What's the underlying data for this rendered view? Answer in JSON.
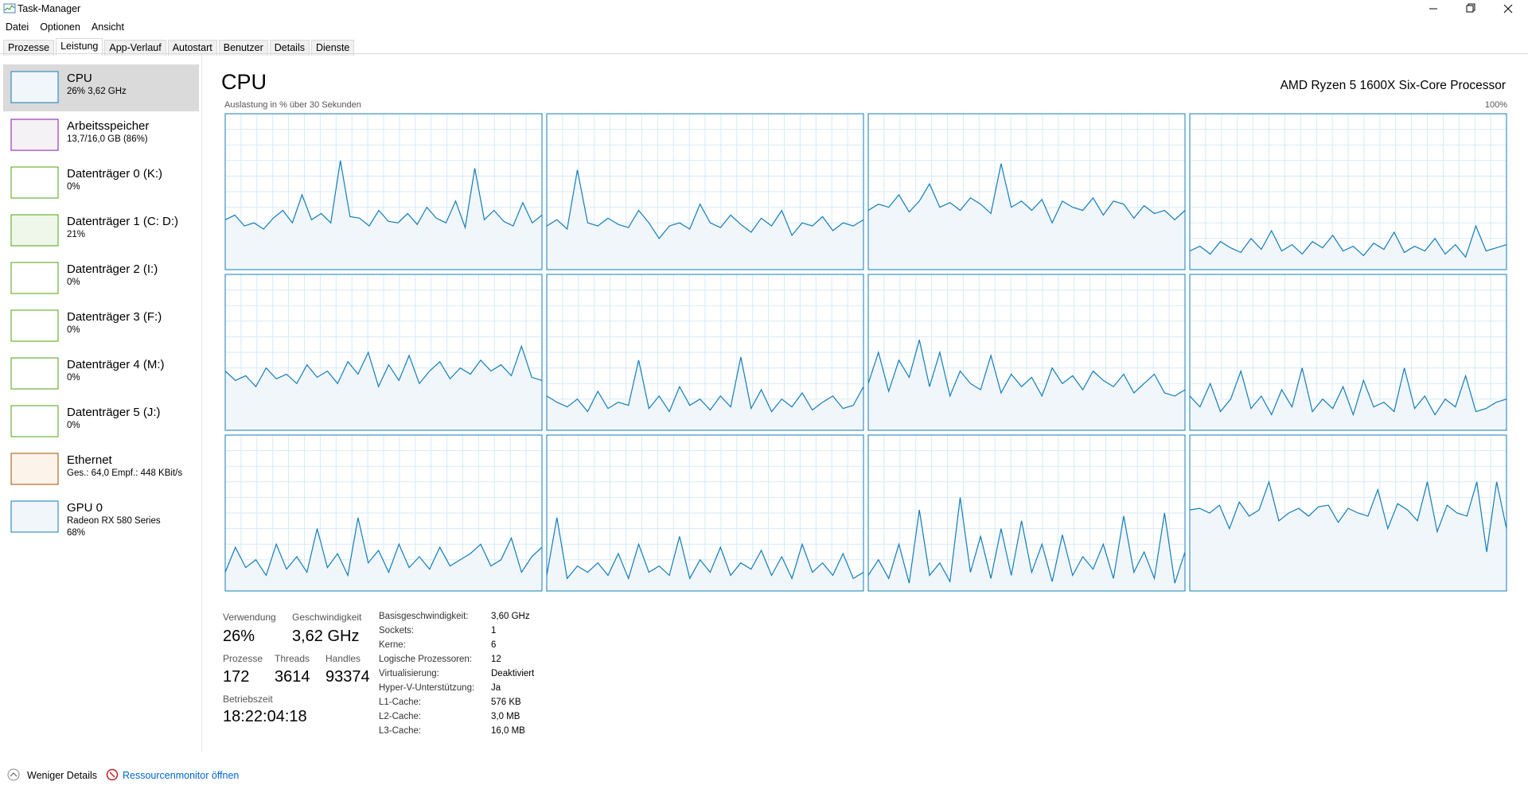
{
  "window": {
    "title": "Task-Manager"
  },
  "menu": [
    "Datei",
    "Optionen",
    "Ansicht"
  ],
  "tabs": [
    "Prozesse",
    "Leistung",
    "App-Verlauf",
    "Autostart",
    "Benutzer",
    "Details",
    "Dienste"
  ],
  "selected_tab": 1,
  "sidebar": [
    {
      "name": "CPU",
      "details": [
        "26% 3,62 GHz"
      ],
      "color": "#117dbb",
      "fill": "#f1f6fa"
    },
    {
      "name": "Arbeitsspeicher",
      "details": [
        "13,7/16,0 GB (86%)"
      ],
      "color": "#8b12ae",
      "fill": "#f4f2f4"
    },
    {
      "name": "Datenträger 0 (K:)",
      "details": [
        "0%"
      ],
      "color": "#4da60c",
      "fill": "#ffffff"
    },
    {
      "name": "Datenträger 1 (C: D:)",
      "details": [
        "21%"
      ],
      "color": "#4da60c",
      "fill": "#eff7ea"
    },
    {
      "name": "Datenträger 2 (I:)",
      "details": [
        "0%"
      ],
      "color": "#4da60c",
      "fill": "#ffffff"
    },
    {
      "name": "Datenträger 3 (F:)",
      "details": [
        "0%"
      ],
      "color": "#4da60c",
      "fill": "#ffffff"
    },
    {
      "name": "Datenträger 4 (M:)",
      "details": [
        "0%"
      ],
      "color": "#4da60c",
      "fill": "#ffffff"
    },
    {
      "name": "Datenträger 5 (J:)",
      "details": [
        "0%"
      ],
      "color": "#4da60c",
      "fill": "#ffffff"
    },
    {
      "name": "Ethernet",
      "details": [
        "Ges.: 64,0 Empf.: 448 KBit/s"
      ],
      "color": "#a74f01",
      "fill": "#fcf3eb"
    },
    {
      "name": "GPU 0",
      "details": [
        "Radeon RX 580 Series",
        "68%"
      ],
      "color": "#117dbb",
      "fill": "#f1f6fa"
    }
  ],
  "selected_item": 0,
  "performance": {
    "title": "CPU",
    "processor": "AMD Ryzen 5 1600X Six-Core Processor",
    "graph_caption": "Auslastung in % über 30 Sekunden",
    "scale_max_label": "100%",
    "ylim": [
      0,
      100
    ],
    "line_color": "#117dbb",
    "area_color": "#f1f6fa",
    "cores": [
      {
        "values": [
          32,
          35,
          28,
          30,
          26,
          33,
          38,
          30,
          48,
          32,
          36,
          30,
          70,
          34,
          33,
          28,
          38,
          31,
          30,
          36,
          29,
          40,
          33,
          30,
          44,
          27,
          65,
          32,
          38,
          31,
          28,
          43,
          30,
          35
        ]
      },
      {
        "values": [
          28,
          32,
          26,
          64,
          30,
          28,
          33,
          29,
          27,
          38,
          30,
          20,
          28,
          30,
          26,
          42,
          30,
          27,
          35,
          29,
          24,
          33,
          28,
          38,
          22,
          30,
          28,
          34,
          25,
          30,
          28,
          32
        ]
      },
      {
        "values": [
          38,
          42,
          40,
          48,
          37,
          44,
          55,
          40,
          43,
          38,
          46,
          42,
          36,
          68,
          40,
          44,
          38,
          45,
          30,
          44,
          40,
          38,
          46,
          35,
          44,
          42,
          33,
          41,
          36,
          38,
          32,
          38
        ]
      },
      {
        "values": [
          12,
          15,
          10,
          18,
          14,
          11,
          20,
          13,
          25,
          12,
          16,
          10,
          18,
          14,
          22,
          12,
          15,
          9,
          17,
          13,
          24,
          11,
          15,
          12,
          20,
          10,
          16,
          8,
          28,
          12,
          14,
          16
        ]
      },
      {
        "values": [
          38,
          32,
          35,
          28,
          40,
          33,
          36,
          30,
          42,
          34,
          38,
          30,
          44,
          36,
          50,
          28,
          42,
          32,
          48,
          30,
          38,
          44,
          33,
          40,
          36,
          45,
          38,
          42,
          35,
          54,
          34,
          32
        ]
      },
      {
        "values": [
          22,
          18,
          15,
          20,
          12,
          25,
          14,
          18,
          16,
          45,
          14,
          22,
          12,
          28,
          16,
          20,
          13,
          22,
          15,
          47,
          14,
          26,
          12,
          20,
          15,
          24,
          13,
          18,
          22,
          14,
          16,
          28
        ]
      },
      {
        "values": [
          30,
          50,
          25,
          45,
          34,
          58,
          28,
          50,
          22,
          38,
          30,
          26,
          48,
          24,
          36,
          28,
          34,
          22,
          40,
          30,
          35,
          26,
          38,
          32,
          28,
          36,
          24,
          30,
          36,
          24,
          22,
          26
        ]
      },
      {
        "values": [
          22,
          15,
          30,
          12,
          20,
          38,
          14,
          22,
          10,
          26,
          15,
          40,
          12,
          20,
          14,
          28,
          10,
          32,
          15,
          18,
          12,
          40,
          14,
          22,
          10,
          20,
          15,
          35,
          12,
          14,
          18,
          20
        ]
      },
      {
        "values": [
          12,
          28,
          15,
          20,
          10,
          30,
          14,
          22,
          12,
          40,
          15,
          24,
          10,
          47,
          18,
          26,
          12,
          30,
          15,
          22,
          14,
          28,
          16,
          20,
          24,
          30,
          16,
          20,
          34,
          12,
          22,
          28
        ]
      },
      {
        "values": [
          10,
          47,
          8,
          16,
          12,
          18,
          10,
          24,
          8,
          30,
          12,
          16,
          10,
          35,
          8,
          20,
          12,
          28,
          10,
          18,
          14,
          26,
          10,
          22,
          8,
          30,
          12,
          18,
          10,
          24,
          8,
          12
        ]
      },
      {
        "values": [
          10,
          20,
          8,
          30,
          5,
          52,
          10,
          18,
          6,
          60,
          12,
          35,
          8,
          40,
          10,
          45,
          12,
          30,
          6,
          36,
          10,
          22,
          14,
          30,
          8,
          48,
          12,
          25,
          8,
          50,
          5,
          25
        ]
      },
      {
        "values": [
          52,
          53,
          50,
          55,
          40,
          57,
          48,
          52,
          70,
          45,
          50,
          53,
          48,
          54,
          55,
          44,
          53,
          50,
          48,
          65,
          40,
          56,
          52,
          45,
          70,
          38,
          55,
          50,
          48,
          70,
          25,
          70,
          40
        ]
      }
    ],
    "stats": [
      {
        "label": "Verwendung",
        "value": "26%"
      },
      {
        "label": "Geschwindigkeit",
        "value": "3,62 GHz"
      },
      {
        "label": "Prozesse",
        "value": "172"
      },
      {
        "label": "Threads",
        "value": "3614"
      },
      {
        "label": "Handles",
        "value": "93374"
      },
      {
        "label": "Betriebszeit",
        "value": "18:22:04:18"
      }
    ],
    "info": [
      [
        "Basisgeschwindigkeit:",
        "3,60 GHz"
      ],
      [
        "Sockets:",
        "1"
      ],
      [
        "Kerne:",
        "6"
      ],
      [
        "Logische Prozessoren:",
        "12"
      ],
      [
        "Virtualisierung:",
        "Deaktiviert"
      ],
      [
        "Hyper-V-Unterstützung:",
        "Ja"
      ],
      [
        "L1-Cache:",
        "576 KB"
      ],
      [
        "L2-Cache:",
        "3,0 MB"
      ],
      [
        "L3-Cache:",
        "16,0 MB"
      ]
    ]
  },
  "footer": {
    "less_details": "Weniger Details",
    "resource_monitor": "Ressourcenmonitor öffnen"
  }
}
